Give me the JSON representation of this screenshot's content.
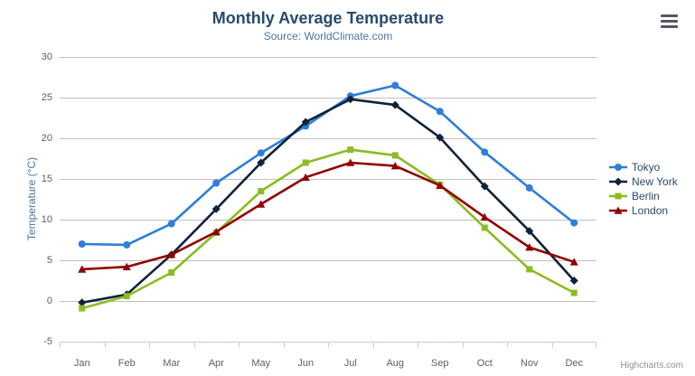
{
  "chart": {
    "title": "Monthly Average Temperature",
    "subtitle": "Source: WorldClimate.com",
    "credit": "Highcharts.com",
    "context_menu_icon": "hamburger-menu"
  },
  "colors": {
    "title_text": "#274b6d",
    "subtitle_text": "#4d759e",
    "axis_label_text": "#606060",
    "grid_line": "#c0c0c0",
    "axis_line": "#c0d0e0",
    "legend_text": "#274b6d",
    "credit_text": "#909090",
    "menu_icon": "#53585f"
  },
  "chart_data": {
    "type": "line",
    "title": "Monthly Average Temperature",
    "subtitle": "Source: WorldClimate.com",
    "categories": [
      "Jan",
      "Feb",
      "Mar",
      "Apr",
      "May",
      "Jun",
      "Jul",
      "Aug",
      "Sep",
      "Oct",
      "Nov",
      "Dec"
    ],
    "xlabel": "",
    "ylabel": "Temperature (°C)",
    "ylim": [
      -5,
      30
    ],
    "yticks": [
      -5,
      0,
      5,
      10,
      15,
      20,
      25,
      30
    ],
    "grid": true,
    "legend_position": "right",
    "series": [
      {
        "name": "Tokyo",
        "color": "#2f7ed8",
        "marker": "circle",
        "values": [
          7.0,
          6.9,
          9.5,
          14.5,
          18.2,
          21.5,
          25.2,
          26.5,
          23.3,
          18.3,
          13.9,
          9.6
        ]
      },
      {
        "name": "New York",
        "color": "#0d233a",
        "marker": "diamond",
        "values": [
          -0.2,
          0.8,
          5.7,
          11.3,
          17.0,
          22.0,
          24.8,
          24.1,
          20.1,
          14.1,
          8.6,
          2.5
        ]
      },
      {
        "name": "Berlin",
        "color": "#8bbc21",
        "marker": "square",
        "values": [
          -0.9,
          0.6,
          3.5,
          8.4,
          13.5,
          17.0,
          18.6,
          17.9,
          14.3,
          9.0,
          3.9,
          1.0
        ]
      },
      {
        "name": "London",
        "color": "#910000",
        "marker": "triangle",
        "values": [
          3.9,
          4.2,
          5.7,
          8.5,
          11.9,
          15.2,
          17.0,
          16.6,
          14.2,
          10.3,
          6.6,
          4.8
        ]
      }
    ]
  }
}
